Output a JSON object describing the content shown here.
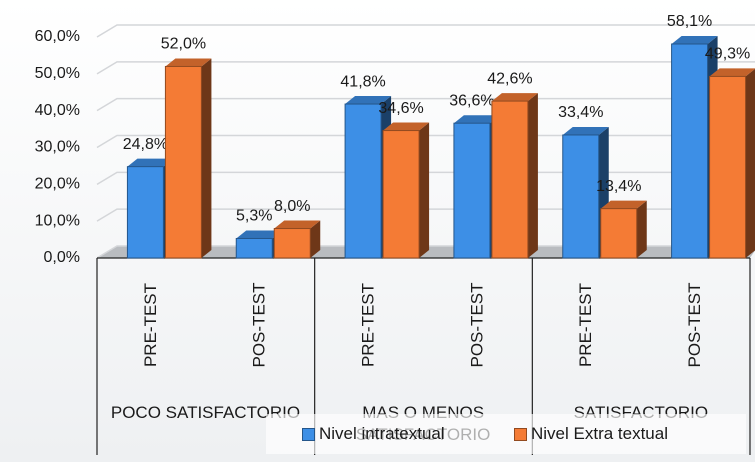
{
  "chart_data": {
    "type": "bar",
    "categories": [
      "PRE-TEST",
      "POS-TEST",
      "PRE-TEST",
      "POS-TEST",
      "PRE-TEST",
      "POS-TEST"
    ],
    "groups": [
      "POCO SATISFACTORIO",
      "MAS O MENOS SATISFACTORIO",
      "SATISFACTORIO"
    ],
    "series": [
      {
        "name": "Nivel intratextual",
        "color": "#3d8fe6",
        "values": [
          24.8,
          5.3,
          41.8,
          36.6,
          33.4,
          58.1
        ],
        "value_labels": [
          "24,8%",
          "5,3%",
          "41,8%",
          "36,6%",
          "33,4%",
          "58,1%"
        ]
      },
      {
        "name": "Nivel Extra textual",
        "color": "#f47b35",
        "values": [
          52.0,
          8.0,
          34.6,
          42.6,
          13.4,
          49.3
        ],
        "value_labels": [
          "52,0%",
          "8,0%",
          "34,6%",
          "42,6%",
          "13,4%",
          "49,3%"
        ]
      }
    ],
    "ylim": [
      0,
      60
    ],
    "yticks": [
      {
        "value": 0,
        "label": "0,0%"
      },
      {
        "value": 10,
        "label": "10,0%"
      },
      {
        "value": 20,
        "label": "20,0%"
      },
      {
        "value": 30,
        "label": "30,0%"
      },
      {
        "value": 40,
        "label": "40,0%"
      },
      {
        "value": 50,
        "label": "50,0%"
      },
      {
        "value": 60,
        "label": "60,0%"
      }
    ],
    "grid": true
  }
}
